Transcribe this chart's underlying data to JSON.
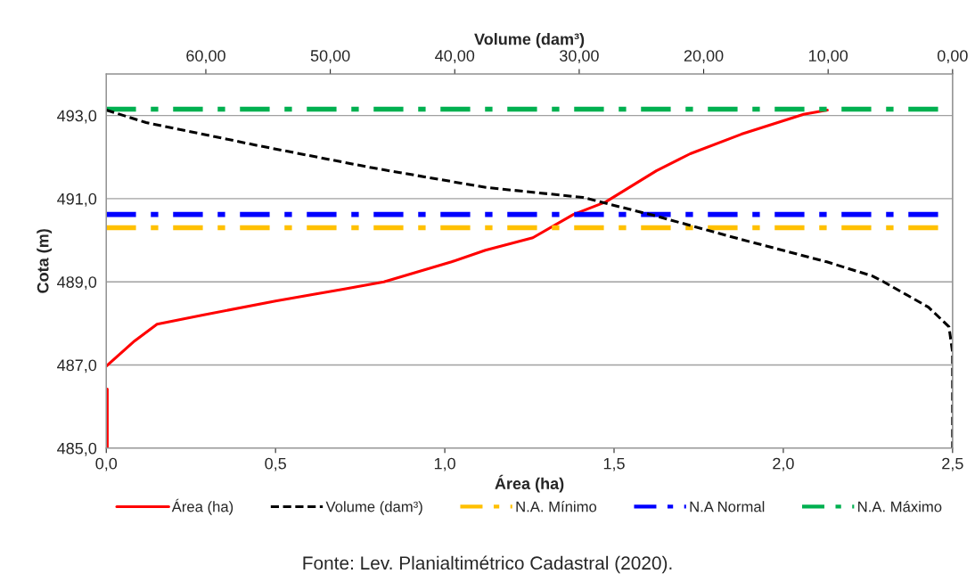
{
  "chart_data": {
    "type": "line",
    "xlabel": "Área (ha)",
    "ylabel": "Cota (m)",
    "x2label": "Volume (dam³)",
    "xlim": [
      0,
      2.5
    ],
    "xticks": [
      {
        "value": 0,
        "label": "0,0"
      },
      {
        "value": 0.5,
        "label": "0,5"
      },
      {
        "value": 1.0,
        "label": "1,0"
      },
      {
        "value": 1.5,
        "label": "1,5"
      },
      {
        "value": 2.0,
        "label": "2,0"
      },
      {
        "value": 2.5,
        "label": "2,5"
      }
    ],
    "x2lim": [
      68,
      0
    ],
    "x2ticks": [
      {
        "value": 60,
        "label": "60,00"
      },
      {
        "value": 50,
        "label": "50,00"
      },
      {
        "value": 40,
        "label": "40,00"
      },
      {
        "value": 30,
        "label": "30,00"
      },
      {
        "value": 20,
        "label": "20,00"
      },
      {
        "value": 10,
        "label": "10,00"
      },
      {
        "value": 0,
        "label": "0,00"
      }
    ],
    "ylim": [
      485,
      494
    ],
    "yticks": [
      {
        "value": 485,
        "label": "485,0"
      },
      {
        "value": 487,
        "label": "487,0"
      },
      {
        "value": 489,
        "label": "489,0"
      },
      {
        "value": 491,
        "label": "491,0"
      },
      {
        "value": 493,
        "label": "493,0"
      }
    ],
    "grid": "y",
    "legend": "bottom",
    "series": [
      {
        "name": "Área (ha)",
        "color": "#ff0000",
        "line_style": "solid",
        "x": [
          0.003,
          0.003,
          null,
          0,
          0.084,
          0.15,
          0.285,
          0.5,
          0.62,
          0.7,
          0.82,
          1.02,
          1.12,
          1.26,
          1.38,
          1.475,
          1.625,
          1.725,
          1.876,
          2.06,
          2.13
        ],
        "values": [
          485,
          486.42,
          null,
          486.97,
          487.58,
          487.98,
          488.2,
          488.54,
          488.71,
          488.82,
          489.0,
          489.48,
          489.76,
          490.06,
          490.62,
          490.92,
          491.67,
          492.08,
          492.55,
          493.03,
          493.13
        ]
      },
      {
        "name": "Volume (dam³)",
        "color": "#000000",
        "line_style": "dashed",
        "axis": "x2",
        "x": [
          68.0,
          64.8,
          55.7,
          46.6,
          37.5,
          29.7,
          23.8,
          17.0,
          10.1,
          6.45,
          5.6,
          1.94,
          0.29,
          0,
          0
        ],
        "values": [
          493.13,
          492.83,
          492.27,
          491.74,
          491.27,
          491.03,
          490.58,
          490.02,
          489.48,
          489.14,
          489.01,
          488.39,
          487.92,
          487.3,
          485
        ]
      }
    ],
    "ref_lines": [
      {
        "axis": "y",
        "value": 490.3,
        "label": "N.A. Mínimo",
        "color": "#ffc000",
        "line_style": "dashdot"
      },
      {
        "axis": "y",
        "value": 490.62,
        "label": "N.A Normal",
        "color": "#0000ff",
        "line_style": "dashdot"
      },
      {
        "axis": "y",
        "value": 493.15,
        "label": "N.A. Máximo",
        "color": "#00b050",
        "line_style": "dashdot"
      }
    ],
    "annotations": [
      "Fonte: Lev. Planialtimétrico Cadastral (2020)."
    ]
  }
}
